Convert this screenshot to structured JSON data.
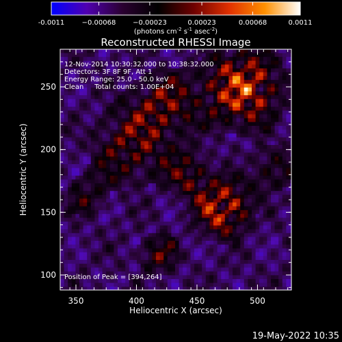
{
  "chart_data": {
    "type": "heatmap",
    "title": "Reconstructed RHESSI Image",
    "xlabel": "Heliocentric X (arcsec)",
    "ylabel": "Heliocentric Y (arcsec)",
    "xlim": [
      337,
      528
    ],
    "ylim": [
      88,
      280
    ],
    "x_ticks": [
      350,
      400,
      450,
      500
    ],
    "y_ticks": [
      100,
      150,
      200,
      250
    ],
    "colorbar": {
      "min": -0.0011,
      "max": 0.0011,
      "tick_values": [
        -0.0011,
        -0.00068,
        -0.00023,
        0.00023,
        0.00068,
        0.0011
      ],
      "tick_labels": [
        "-0.0011",
        "−0.00068",
        "−0.00023",
        "0.00023",
        "0.00068",
        "0.0011"
      ],
      "unit_prefix": "(photons cm",
      "unit_exp1": "-2",
      "unit_mid": " s",
      "unit_exp2": "-1",
      "unit_mid2": " asec",
      "unit_exp3": "-2",
      "unit_suffix": ")",
      "colors": [
        "#0000ff",
        "#5000b0",
        "#2a0030",
        "#000000",
        "#6e0000",
        "#e03000",
        "#ff9000",
        "#ffffff"
      ]
    },
    "annotations": {
      "line1": "12-Nov-2014 10:30:32.000 to 10:38:32.000",
      "line2": "Detectors: 3F 8F 9F, Att 1",
      "line3": "Energy Range: 25.0 - 50.0 keV",
      "line4": "Clean     Total counts: 1.00E+04",
      "peak": "Position of Peak = [394,264]"
    },
    "peak_position": [
      394,
      264
    ],
    "grid": "off"
  },
  "footer": {
    "date": "19-May-2022 10:35"
  }
}
